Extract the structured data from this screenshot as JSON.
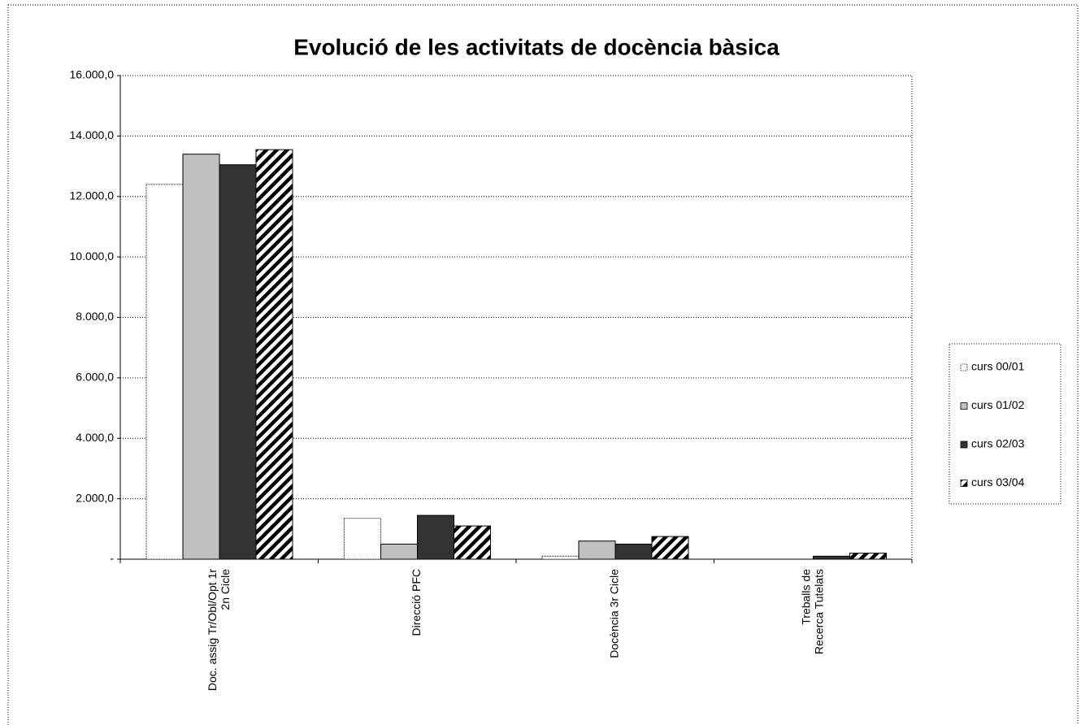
{
  "chart_data": {
    "type": "bar",
    "title": "Evolució de les activitats de docència bàsica",
    "categories": [
      "Doc. assig Tr/Obl/Opt 1r 2n Cicle",
      "Direcció PFC",
      "Docència 3r Cicle",
      "Treballs de Recerca Tutelats"
    ],
    "series": [
      {
        "name": "curs 00/01",
        "color": "#ffffff",
        "values": [
          12400,
          1350,
          100,
          0
        ]
      },
      {
        "name": "curs 01/02",
        "color": "#c0c0c0",
        "values": [
          13400,
          500,
          600,
          0
        ]
      },
      {
        "name": "curs 02/03",
        "color": "#333333",
        "values": [
          13050,
          1450,
          500,
          100
        ]
      },
      {
        "name": "curs 03/04",
        "color": "#000000",
        "pattern": "diagonal",
        "values": [
          13550,
          1100,
          750,
          200
        ]
      }
    ],
    "ylim": [
      0,
      16000
    ],
    "yticks": [
      {
        "value": 0,
        "label": "-"
      },
      {
        "value": 2000,
        "label": "2.000,0"
      },
      {
        "value": 4000,
        "label": "4.000,0"
      },
      {
        "value": 6000,
        "label": "6.000,0"
      },
      {
        "value": 8000,
        "label": "8.000,0"
      },
      {
        "value": 10000,
        "label": "10.000,0"
      },
      {
        "value": 12000,
        "label": "12.000,0"
      },
      {
        "value": 14000,
        "label": "14.000,0"
      },
      {
        "value": 16000,
        "label": "16.000,0"
      }
    ],
    "grid": true,
    "legend": "right"
  }
}
